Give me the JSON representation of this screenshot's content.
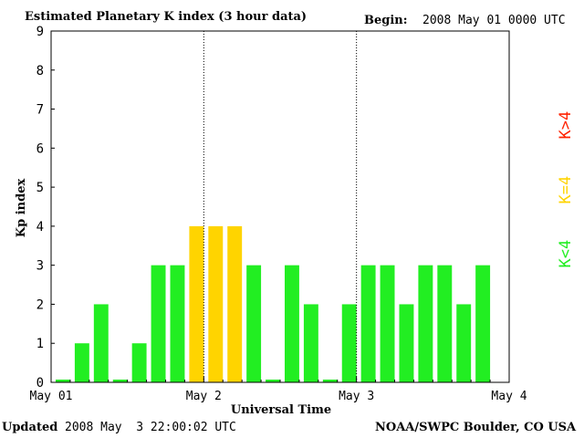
{
  "header": {
    "title": "Estimated Planetary K index (3 hour data)",
    "begin_label": "Begin:",
    "begin_value": "2008 May 01 0000 UTC"
  },
  "footer": {
    "updated_label": "Updated",
    "updated_value": "2008 May  3 22:00:02 UTC",
    "credit": "NOAA/SWPC Boulder, CO USA"
  },
  "legend": {
    "high": {
      "label": "K>4",
      "color": "#ff2200"
    },
    "mid": {
      "label": "K=4",
      "color": "#ffd400"
    },
    "low": {
      "label": "K<4",
      "color": "#22ee22"
    }
  },
  "chart_data": {
    "type": "bar",
    "title": "Estimated Planetary K index (3 hour data)",
    "xlabel": "Universal Time",
    "ylabel": "Kp index",
    "ylim": [
      0,
      9
    ],
    "yticks": [
      "0",
      "1",
      "2",
      "3",
      "4",
      "5",
      "6",
      "7",
      "8",
      "9"
    ],
    "xticks": [
      "May 01",
      "May 2",
      "May 3",
      "May 4"
    ],
    "bars_per_day": 8,
    "values": [
      0,
      1,
      2,
      0,
      1,
      3,
      3,
      4,
      4,
      4,
      3,
      0,
      3,
      2,
      0,
      2,
      3,
      3,
      2,
      3,
      3,
      2,
      3
    ],
    "colors": {
      "below4": "#22ee22",
      "equal4": "#ffd400",
      "above4": "#ff2200"
    },
    "grid": "vertical dotted day separators"
  }
}
